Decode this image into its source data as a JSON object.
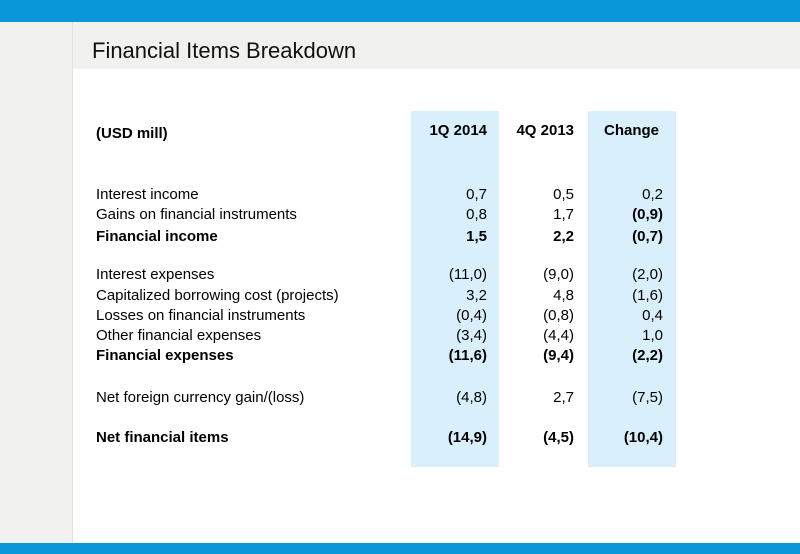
{
  "title": "Financial Items Breakdown",
  "table": {
    "unit_label": "(USD mill)",
    "columns": [
      "1Q 2014",
      "4Q 2013",
      "Change"
    ],
    "rows": [
      {
        "label": "Interest income",
        "values": [
          "0,7",
          "0,5",
          "0,2"
        ]
      },
      {
        "label": "Gains on financial instruments",
        "values": [
          "0,8",
          "1,7",
          "(0,9)"
        ]
      },
      {
        "label": "Financial income",
        "values": [
          "1,5",
          "2,2",
          "(0,7)"
        ]
      },
      {
        "label": "Interest expenses",
        "values": [
          "(11,0)",
          "(9,0)",
          "(2,0)"
        ]
      },
      {
        "label": "Capitalized borrowing cost (projects)",
        "values": [
          "3,2",
          "4,8",
          "(1,6)"
        ]
      },
      {
        "label": "Losses on financial instruments",
        "values": [
          "(0,4)",
          "(0,8)",
          "0,4"
        ]
      },
      {
        "label": "Other financial expenses",
        "values": [
          "(3,4)",
          "(4,4)",
          "1,0"
        ]
      },
      {
        "label": "Financial expenses",
        "values": [
          "(11,6)",
          "(9,4)",
          "(2,2)"
        ]
      },
      {
        "label": "Net foreign currency gain/(loss)",
        "values": [
          "(4,8)",
          "2,7",
          "(7,5)"
        ]
      },
      {
        "label": "Net financial items",
        "values": [
          "(14,9)",
          "(4,5)",
          "(10,4)"
        ]
      }
    ]
  },
  "colors": {
    "accent": "#0a97d9",
    "column_highlight": "#d9f0fc",
    "header_band": "#f1f1ef"
  }
}
